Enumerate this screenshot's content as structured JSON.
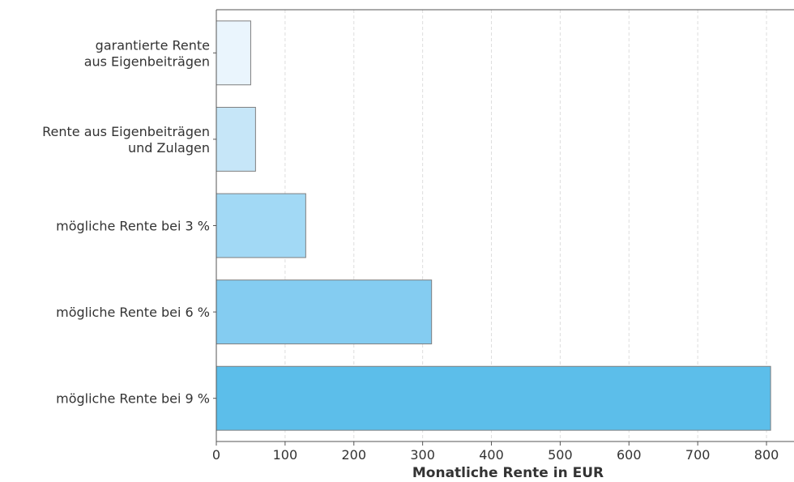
{
  "chart_data": {
    "type": "bar",
    "orientation": "horizontal",
    "categories": [
      [
        "garantierte Rente",
        "aus Eigenbeiträgen"
      ],
      [
        "Rente aus Eigenbeiträgen",
        "und Zulagen"
      ],
      [
        "mögliche Rente bei 3 %"
      ],
      [
        "mögliche Rente bei 6 %"
      ],
      [
        "mögliche Rente bei 9 %"
      ]
    ],
    "values": [
      50,
      57,
      130,
      313,
      806
    ],
    "colors": [
      "#eaf5fd",
      "#c6e6f8",
      "#a2d9f5",
      "#84ccf1",
      "#5cbeea"
    ],
    "xlabel": "Monatliche Rente in EUR",
    "ylabel": "",
    "title": "",
    "xlim": [
      0,
      840
    ],
    "xticks": [
      0,
      100,
      200,
      300,
      400,
      500,
      600,
      700,
      800
    ],
    "grid": "vertical-dashed"
  }
}
